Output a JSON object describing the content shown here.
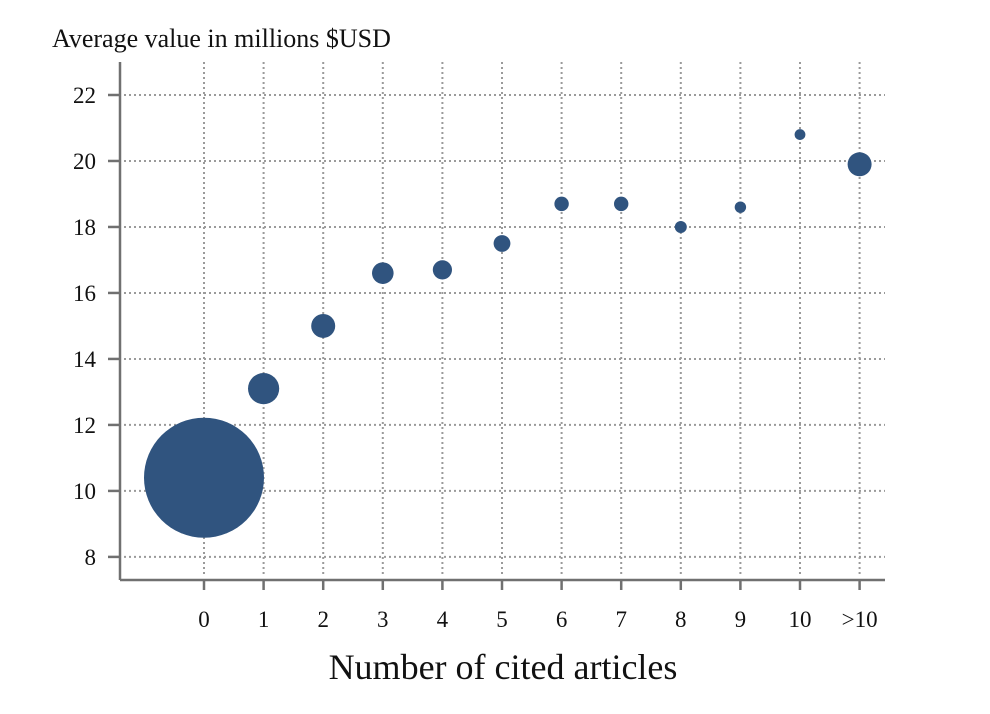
{
  "chart_data": {
    "type": "scatter",
    "title": "",
    "ylabel": "Average value in millions $USD",
    "xlabel": "Number of cited articles",
    "categories": [
      "0",
      "1",
      "2",
      "3",
      "4",
      "5",
      "6",
      "7",
      "8",
      "9",
      "10",
      ">10"
    ],
    "ylim": [
      7.3,
      23
    ],
    "yticks": [
      8,
      10,
      12,
      14,
      16,
      18,
      20,
      22
    ],
    "ytick_labels": [
      "8",
      "10",
      "12",
      "14",
      "16",
      "18",
      "20",
      "22"
    ],
    "grid": true,
    "legend": "none",
    "marker_sizing": "marker area varies by point",
    "series": [
      {
        "values": [
          10.4,
          13.1,
          15.0,
          16.6,
          16.7,
          17.5,
          18.7,
          18.7,
          18.0,
          18.6,
          20.8,
          19.9
        ],
        "relative_size": [
          1.0,
          0.26,
          0.2,
          0.18,
          0.16,
          0.14,
          0.12,
          0.12,
          0.1,
          0.095,
          0.09,
          0.2
        ]
      }
    ],
    "colors": {
      "point": "#30547f",
      "grid": "#9a9a9a",
      "axis": "#707070"
    }
  }
}
